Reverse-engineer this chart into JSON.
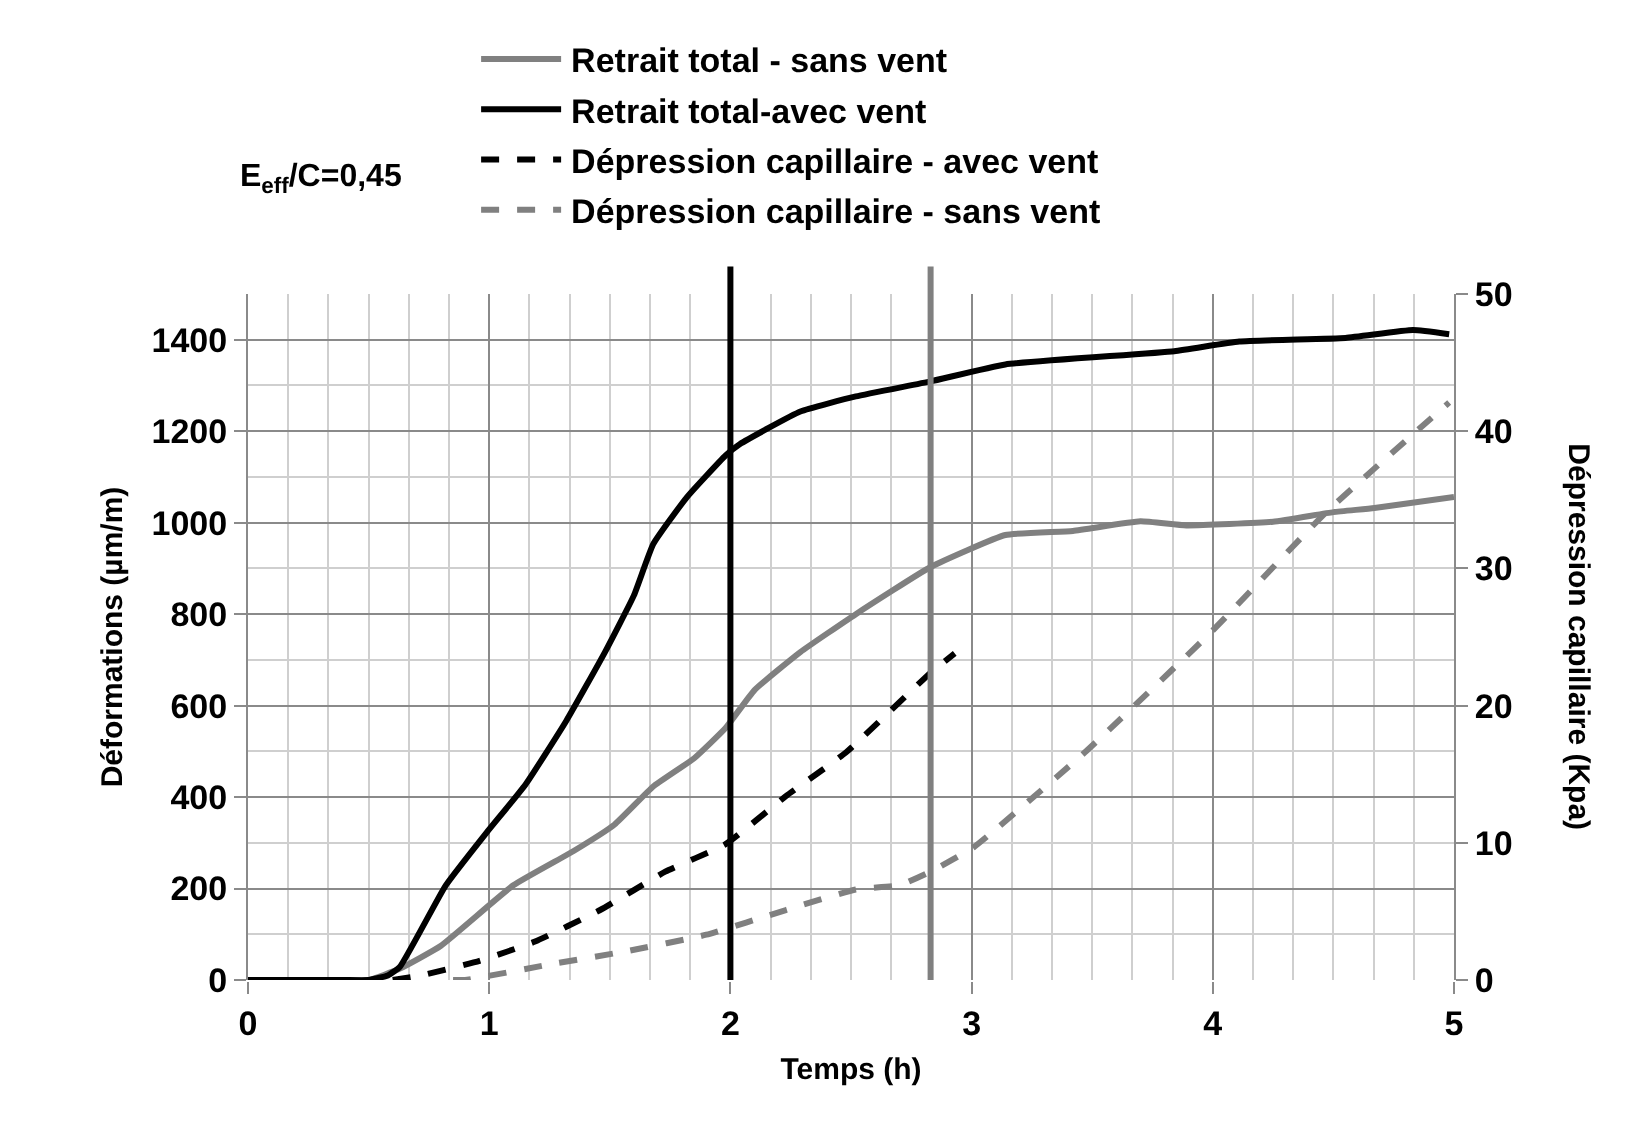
{
  "chart_data": {
    "type": "line",
    "title": "E$_{eff}$/C=0,45",
    "xlabel": "Temps (h)",
    "ylabel": "Déformations (µm/m)",
    "y2label": "Dépression capillaire (Kpa)",
    "xlim": [
      0,
      5
    ],
    "xticks": [
      0,
      1,
      2,
      3,
      4,
      5
    ],
    "ylim": [
      0,
      1500
    ],
    "yticks": [
      0,
      200,
      400,
      600,
      800,
      1000,
      1200,
      1400
    ],
    "y2lim": [
      0,
      50
    ],
    "y2ticks": [
      0,
      10,
      20,
      30,
      40,
      50
    ],
    "grid": true,
    "legend": "top",
    "marker": "none",
    "series": [
      {
        "name": "Retrait total - sans vent",
        "color": "#808080",
        "line_style": "solid",
        "x": [
          0,
          0.25,
          0.5,
          0.63,
          0.8,
          1.1,
          1.35,
          1.52,
          1.68,
          1.85,
          1.98,
          2.1,
          2.29,
          2.52,
          2.83,
          3.14,
          3.42,
          3.7,
          3.89,
          4.25,
          4.5,
          4.67,
          5.0
        ],
        "values": [
          0,
          0,
          0,
          25,
          75,
          207,
          282,
          340,
          423,
          485,
          551,
          634,
          717,
          800,
          903,
          973,
          982,
          1003,
          994,
          1002,
          1023,
          1032,
          1056
        ]
      },
      {
        "name": "Retrait total-avec vent",
        "color": "#000000",
        "line_style": "solid",
        "x": [
          0,
          0.15,
          0.25,
          0.4,
          0.5,
          0.58,
          0.63,
          0.82,
          0.99,
          1.15,
          1.32,
          1.48,
          1.6,
          1.68,
          1.82,
          1.98,
          2.04,
          2.29,
          2.52,
          2.83,
          3.14,
          3.84,
          4.11,
          4.55,
          4.83,
          4.98
        ],
        "values": [
          0,
          0,
          0,
          0,
          0,
          10,
          29,
          207,
          323,
          427,
          567,
          717,
          841,
          953,
          1056,
          1147,
          1172,
          1243,
          1276,
          1309,
          1346,
          1375,
          1396,
          1404,
          1421,
          1412
        ]
      },
      {
        "name": "Dépression capillaire - avec vent",
        "color": "#000000",
        "line_style": "dashed",
        "axis": "y2",
        "x": [
          0.6,
          0.71,
          0.96,
          1.19,
          1.46,
          1.73,
          1.98,
          2.23,
          2.48,
          2.83,
          2.93
        ],
        "values": [
          0,
          0.3,
          1.4,
          2.8,
          5.1,
          7.9,
          9.9,
          13.4,
          16.6,
          22.4,
          23.8
        ]
      },
      {
        "name": "Dépression capillaire - sans vent",
        "color": "#808080",
        "line_style": "dashed",
        "axis": "y2",
        "x": [
          0.85,
          0.9,
          1.24,
          1.57,
          1.9,
          2.23,
          2.52,
          2.7,
          2.83,
          3.01,
          3.47,
          3.99,
          4.47,
          4.98
        ],
        "values": [
          0,
          0,
          1.1,
          2.1,
          3.3,
          5.1,
          6.6,
          6.9,
          7.9,
          9.7,
          16.6,
          25.3,
          34.1,
          42.1
        ]
      }
    ],
    "ref_lines": [
      {
        "axis": "x",
        "value": 2,
        "color": "#000000"
      },
      {
        "axis": "x",
        "value": 2.83,
        "color": "#808080"
      }
    ]
  }
}
